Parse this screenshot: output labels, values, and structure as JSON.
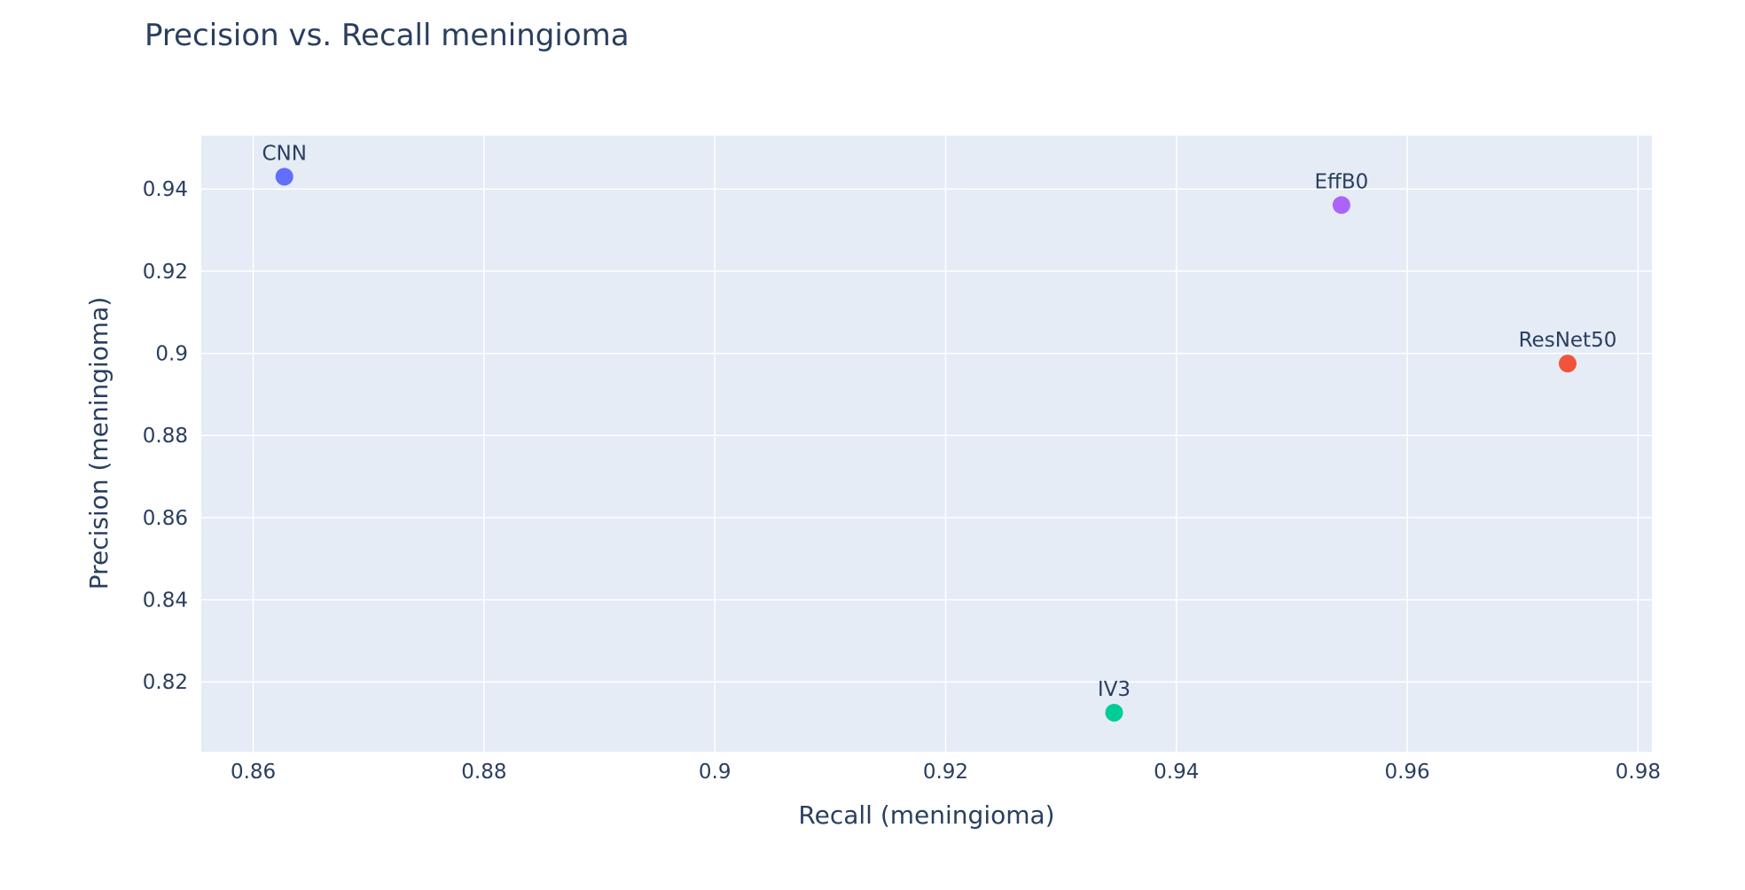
{
  "chart_data": {
    "type": "scatter",
    "title": "Precision vs. Recall meningioma",
    "xlabel": "Recall (meningioma)",
    "ylabel": "Precision (meningioma)",
    "xlim": [
      0.8555,
      0.9812
    ],
    "ylim": [
      0.803,
      0.953
    ],
    "x_ticks": [
      {
        "value": 0.86,
        "label": "0.86"
      },
      {
        "value": 0.88,
        "label": "0.88"
      },
      {
        "value": 0.9,
        "label": "0.9"
      },
      {
        "value": 0.92,
        "label": "0.92"
      },
      {
        "value": 0.94,
        "label": "0.94"
      },
      {
        "value": 0.96,
        "label": "0.96"
      },
      {
        "value": 0.98,
        "label": "0.98"
      }
    ],
    "y_ticks": [
      {
        "value": 0.82,
        "label": "0.82"
      },
      {
        "value": 0.84,
        "label": "0.84"
      },
      {
        "value": 0.86,
        "label": "0.86"
      },
      {
        "value": 0.88,
        "label": "0.88"
      },
      {
        "value": 0.9,
        "label": "0.9"
      },
      {
        "value": 0.92,
        "label": "0.92"
      },
      {
        "value": 0.94,
        "label": "0.94"
      }
    ],
    "grid": true,
    "points": [
      {
        "label": "CNN",
        "x": 0.8627,
        "y": 0.943,
        "color": "#636efa"
      },
      {
        "label": "EffB0",
        "x": 0.9543,
        "y": 0.9361,
        "color": "#ab63fa"
      },
      {
        "label": "ResNet50",
        "x": 0.9739,
        "y": 0.8975,
        "color": "#ef553b"
      },
      {
        "label": "IV3",
        "x": 0.9346,
        "y": 0.8125,
        "color": "#00cc96"
      }
    ],
    "colors": {
      "plot_bg": "#e5ecf6",
      "text": "#2a3f5f",
      "grid": "#ffffff"
    }
  }
}
